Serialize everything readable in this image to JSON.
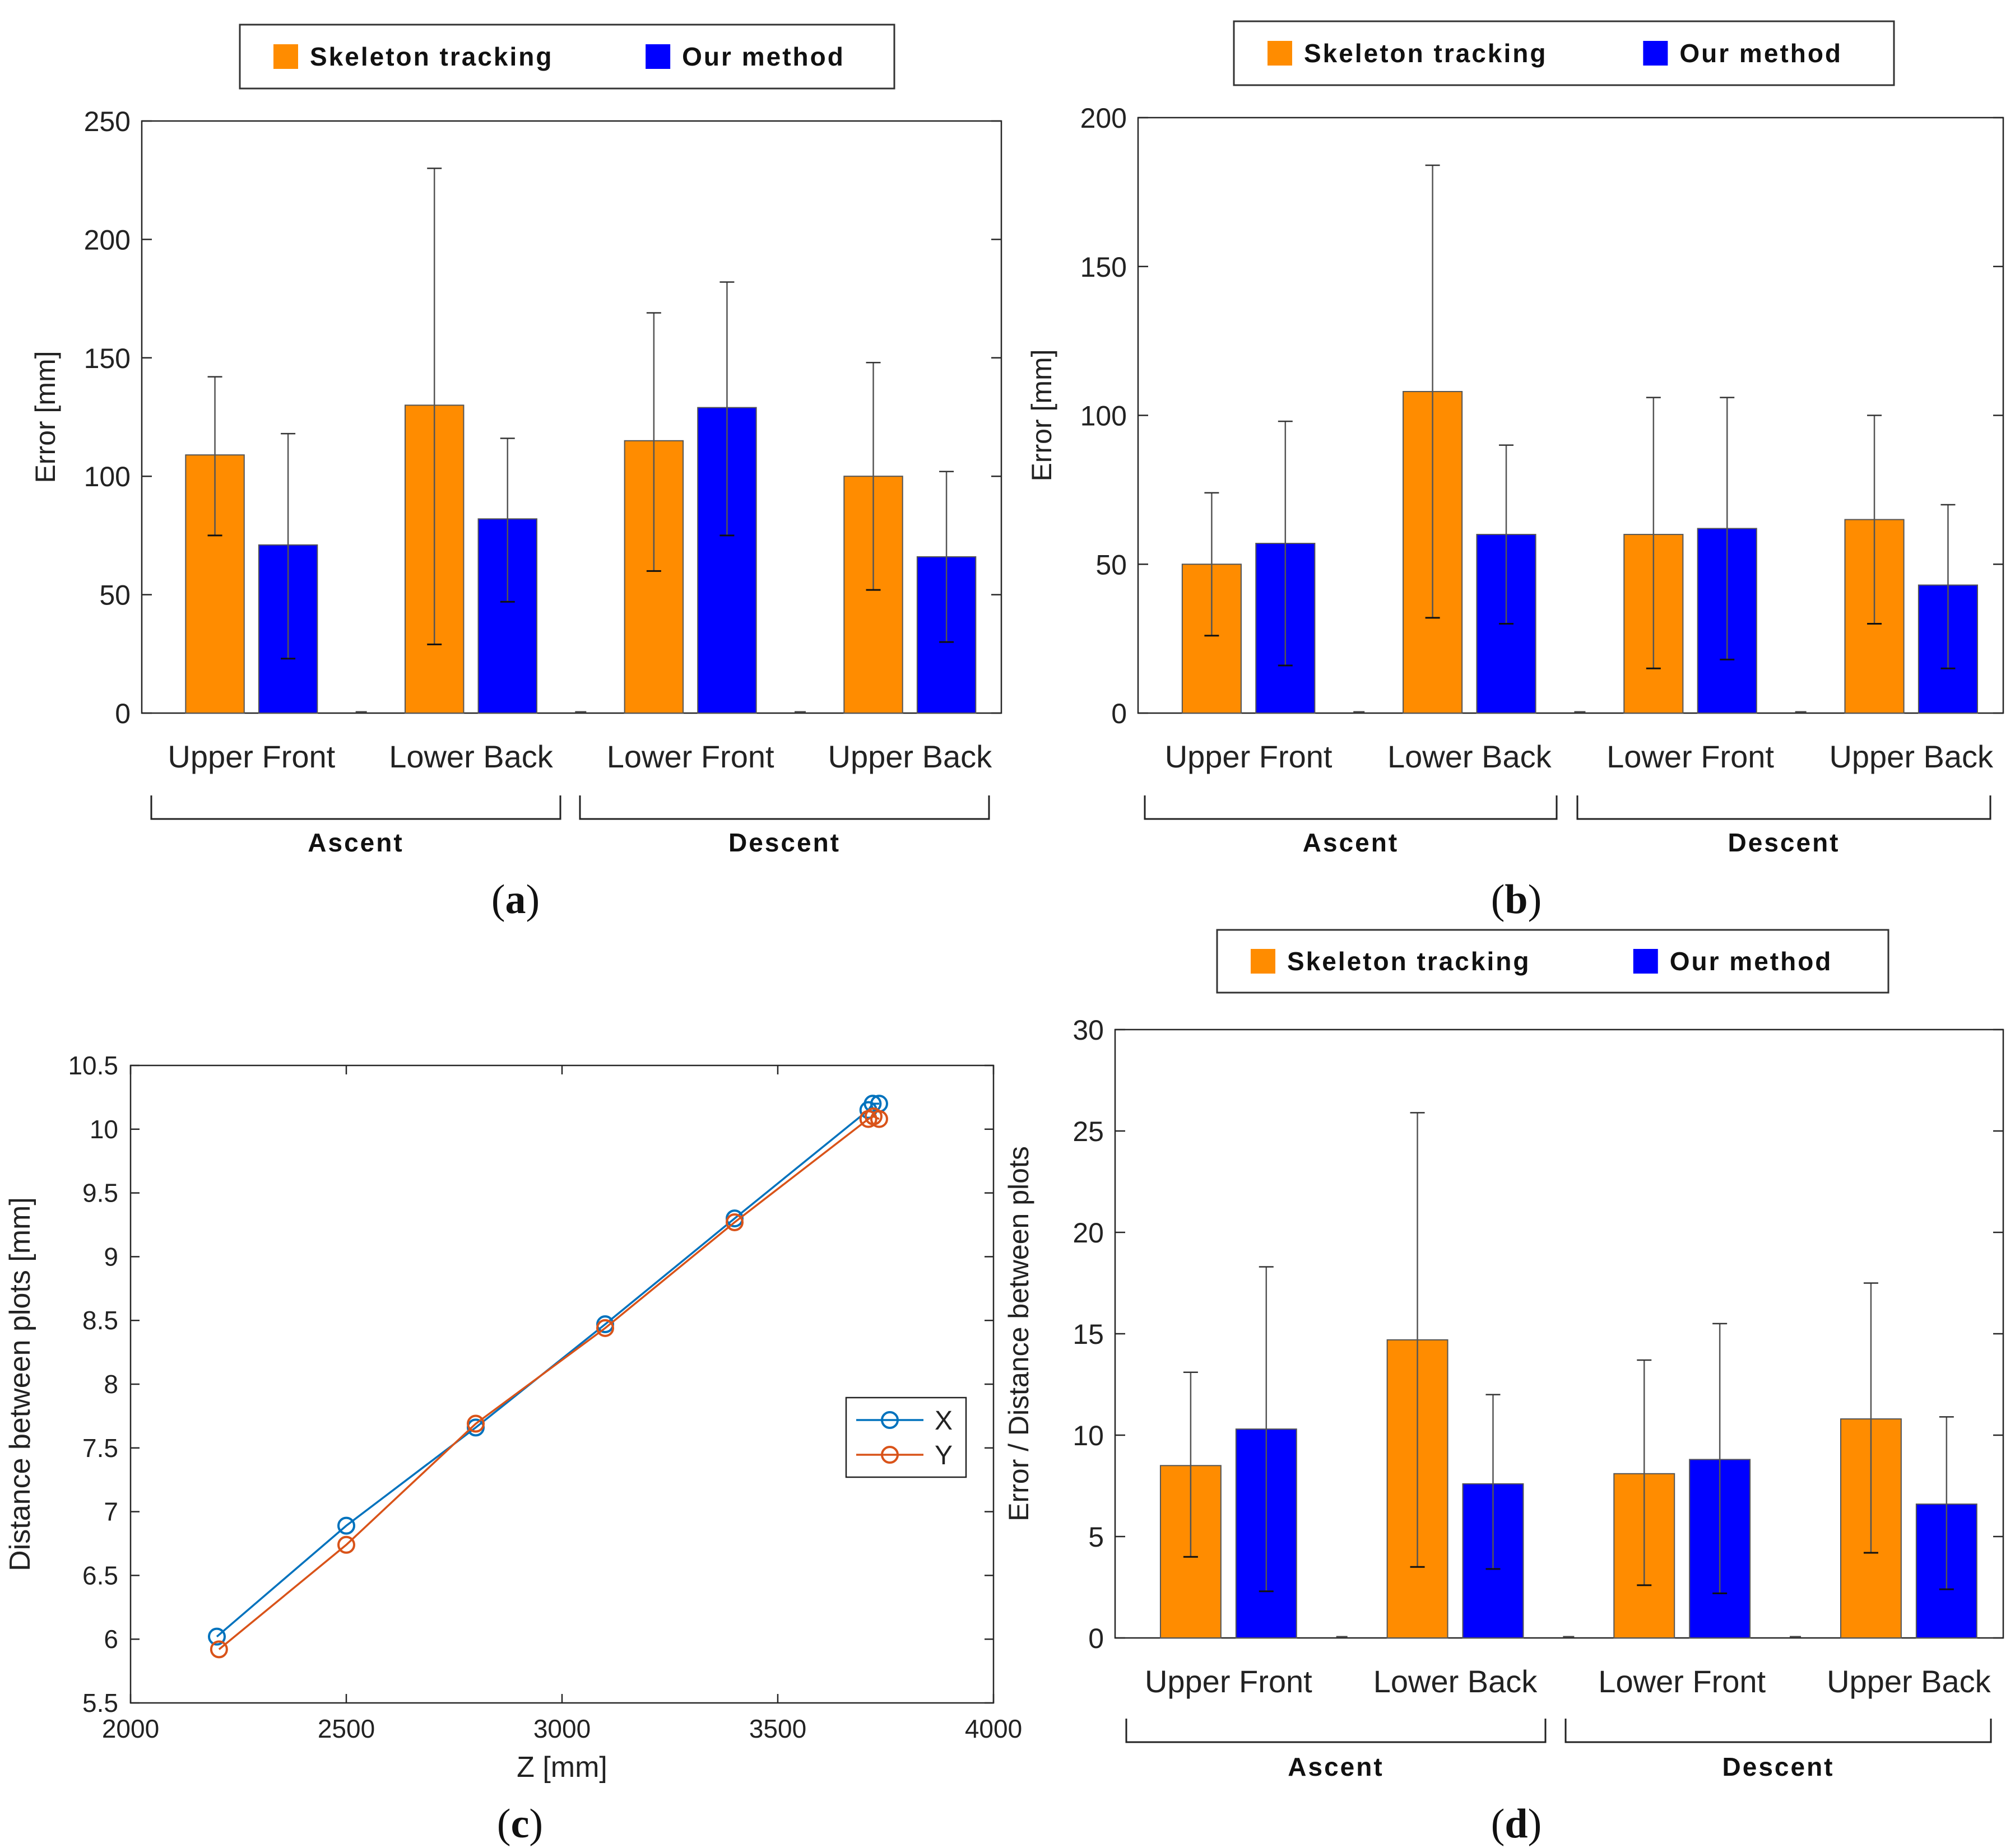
{
  "colors": {
    "skeleton": "#FF8C00",
    "ours": "#0000FF",
    "x_line": "#0072BD",
    "y_line": "#D95319",
    "axis": "#262626",
    "grid_tick": "#333333"
  },
  "legend": {
    "skeleton": "Skeleton tracking",
    "ours": "Our method"
  },
  "groups": {
    "ascent": "Ascent",
    "descent": "Descent"
  },
  "chart_data": [
    {
      "id": "a",
      "type": "bar",
      "panel_label": "(a)",
      "ylabel": "Error [mm]",
      "ylim": [
        0,
        250
      ],
      "yticks": [
        0,
        50,
        100,
        150,
        200,
        250
      ],
      "categories": [
        "Upper Front",
        "Lower Back",
        "Lower Front",
        "Upper Back"
      ],
      "series": [
        {
          "name": "Skeleton tracking",
          "values": [
            109,
            130,
            115,
            100
          ],
          "err_low": [
            75,
            29,
            60,
            52
          ],
          "err_high": [
            142,
            230,
            169,
            148
          ]
        },
        {
          "name": "Our method",
          "values": [
            71,
            82,
            129,
            66
          ],
          "err_low": [
            23,
            47,
            75,
            30
          ],
          "err_high": [
            118,
            116,
            182,
            102
          ]
        }
      ]
    },
    {
      "id": "b",
      "type": "bar",
      "panel_label": "(b)",
      "ylabel": "Error [mm]",
      "ylim": [
        0,
        200
      ],
      "yticks": [
        0,
        50,
        100,
        150,
        200
      ],
      "categories": [
        "Upper Front",
        "Lower Back",
        "Lower Front",
        "Upper Back"
      ],
      "series": [
        {
          "name": "Skeleton tracking",
          "values": [
            50,
            108,
            60,
            65
          ],
          "err_low": [
            26,
            32,
            15,
            30
          ],
          "err_high": [
            74,
            184,
            106,
            100
          ]
        },
        {
          "name": "Our method",
          "values": [
            57,
            60,
            62,
            43
          ],
          "err_low": [
            16,
            30,
            18,
            15
          ],
          "err_high": [
            98,
            90,
            106,
            70
          ]
        }
      ]
    },
    {
      "id": "c",
      "type": "line",
      "panel_label": "(c)",
      "xlabel": "Z [mm]",
      "ylabel": "Distance between plots [mm]",
      "xlim": [
        2000,
        4000
      ],
      "ylim": [
        5.5,
        10.5
      ],
      "xticks": [
        2000,
        2500,
        3000,
        3500,
        4000
      ],
      "yticks": [
        5.5,
        6,
        6.5,
        7,
        7.5,
        8,
        8.5,
        9,
        9.5,
        10,
        10.5
      ],
      "legend": [
        "X",
        "Y"
      ],
      "series": [
        {
          "name": "X",
          "points": [
            [
              2200,
              6.02
            ],
            [
              2500,
              6.89
            ],
            [
              2800,
              7.66
            ],
            [
              3100,
              8.47
            ],
            [
              3400,
              9.3
            ],
            [
              3710,
              10.15
            ],
            [
              3720,
              10.2
            ],
            [
              3735,
              10.2
            ]
          ]
        },
        {
          "name": "Y",
          "points": [
            [
              2205,
              5.92
            ],
            [
              2500,
              6.74
            ],
            [
              2800,
              7.69
            ],
            [
              3100,
              8.44
            ],
            [
              3400,
              9.27
            ],
            [
              3710,
              10.08
            ],
            [
              3722,
              10.1
            ],
            [
              3735,
              10.08
            ]
          ]
        }
      ]
    },
    {
      "id": "d",
      "type": "bar",
      "panel_label": "(d)",
      "ylabel": "Error / Distance between plots",
      "ylim": [
        0,
        30
      ],
      "yticks": [
        0,
        5,
        10,
        15,
        20,
        25,
        30
      ],
      "categories": [
        "Upper Front",
        "Lower Back",
        "Lower Front",
        "Upper Back"
      ],
      "series": [
        {
          "name": "Skeleton tracking",
          "values": [
            8.5,
            14.7,
            8.1,
            10.8
          ],
          "err_low": [
            4.0,
            3.5,
            2.6,
            4.2
          ],
          "err_high": [
            13.1,
            25.9,
            13.7,
            17.5
          ]
        },
        {
          "name": "Our method",
          "values": [
            10.3,
            7.6,
            8.8,
            6.6
          ],
          "err_low": [
            2.3,
            3.4,
            2.2,
            2.4
          ],
          "err_high": [
            18.3,
            12.0,
            15.5,
            10.9
          ]
        }
      ]
    }
  ]
}
